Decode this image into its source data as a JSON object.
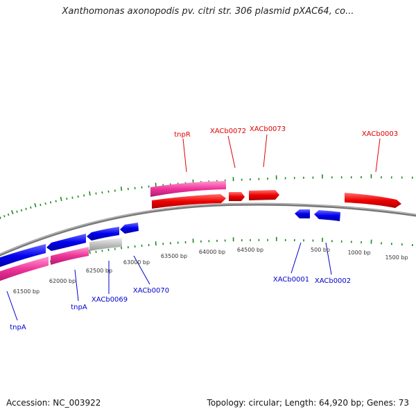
{
  "title": "Xanthomonas axonopodis pv. citri str. 306 plasmid pXAC64, co...",
  "footer": {
    "accession": "Accession: NC_003922",
    "summary": "Topology: circular; Length: 64,920 bp; Genes: 73"
  },
  "colors": {
    "forward_cds": "#ee0000",
    "reverse_cds": "#0000ee",
    "forward_label": "#dd0000",
    "reverse_label": "#0000cc",
    "pseudo": "#ee3399",
    "other": "#bbbbbb",
    "backbone": "#777777",
    "tick": "#1a8a1a"
  },
  "outer_labels": [
    {
      "text": "tnpR"
    },
    {
      "text": "XACb0072"
    },
    {
      "text": "XACb0073"
    },
    {
      "text": "XACb0003"
    }
  ],
  "inner_labels": [
    {
      "text": "tnpA"
    },
    {
      "text": "tnpA"
    },
    {
      "text": "XACb0069"
    },
    {
      "text": "XACb0070"
    },
    {
      "text": "XACb0001"
    },
    {
      "text": "XACb0002"
    }
  ],
  "ticks": [
    "61500 bp",
    "62000 bp",
    "62500 bp",
    "63000 bp",
    "63500 bp",
    "64000 bp",
    "64500 bp",
    "500 bp",
    "1000 bp",
    "1500 bp"
  ]
}
